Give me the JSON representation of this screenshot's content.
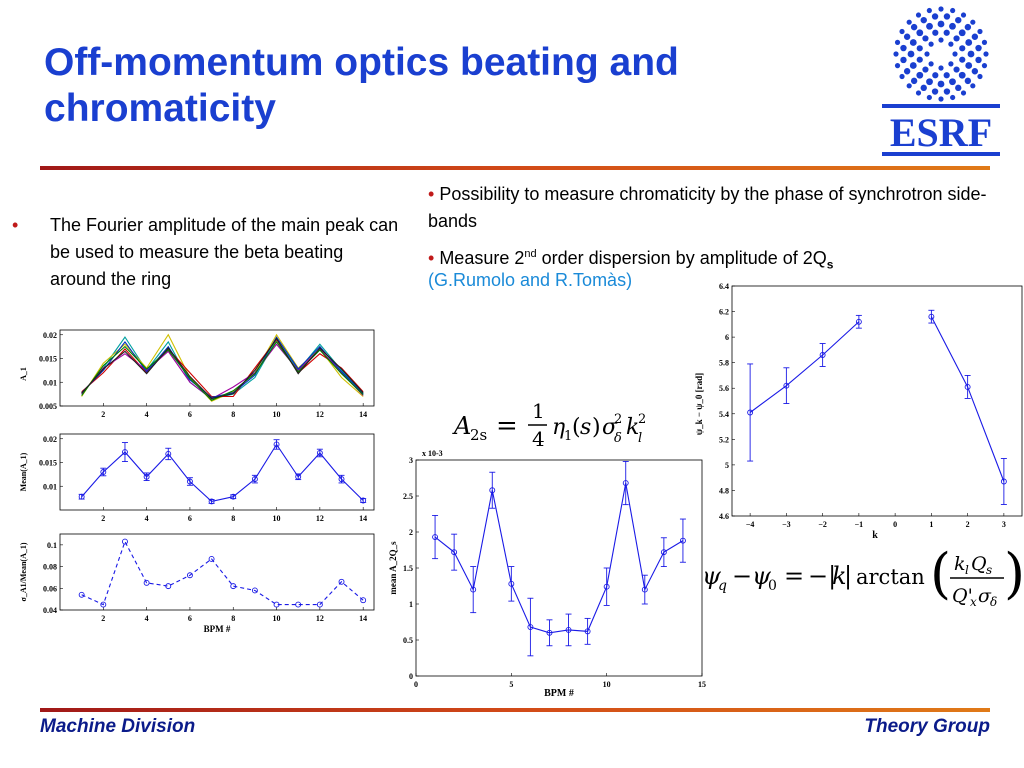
{
  "title": "Off-momentum optics beating and chromaticity",
  "left_bullet": "The Fourier amplitude of the main peak can be used to measure the beta beating around the ring",
  "right_bullet_1": "Possibility to measure chromaticity by the phase of synchrotron side-bands",
  "right_bullet_2": {
    "pre": "Measure 2",
    "sup": "nd",
    "mid": " order dispersion by amplitude of 2Q",
    "sub": "s"
  },
  "reference": "(G.Rumolo and R.Tomàs)",
  "footer_left": "Machine Division",
  "footer_right": "Theory Group",
  "logo_text": "ESRF",
  "colors": {
    "title": "#1a3fd0",
    "accent_red": "#c01a1a",
    "plot_blue": "#1a1ae6",
    "link": "#1a8ad8",
    "footer": "#0b1b8a"
  },
  "chart_data": [
    {
      "type": "line",
      "ylabel": "A_1",
      "x": [
        1,
        2,
        3,
        4,
        5,
        6,
        7,
        8,
        9,
        10,
        11,
        12,
        13,
        14
      ],
      "xlim": [
        0,
        14.5
      ],
      "ylim": [
        0.005,
        0.021
      ],
      "xticks": [
        2,
        4,
        6,
        8,
        10,
        12,
        14
      ],
      "yticks": [
        "0.005",
        "0.01",
        "0.015",
        "0.02"
      ],
      "series": [
        {
          "values": [
            0.0075,
            0.013,
            0.0195,
            0.0125,
            0.0185,
            0.01,
            0.0065,
            0.0075,
            0.011,
            0.019,
            0.0125,
            0.018,
            0.0125,
            0.0075
          ],
          "color": "#00a0a0"
        },
        {
          "values": [
            0.007,
            0.014,
            0.018,
            0.013,
            0.02,
            0.011,
            0.006,
            0.008,
            0.012,
            0.02,
            0.013,
            0.017,
            0.011,
            0.007
          ],
          "color": "#d0c000"
        },
        {
          "values": [
            0.008,
            0.012,
            0.017,
            0.012,
            0.017,
            0.012,
            0.007,
            0.007,
            0.013,
            0.019,
            0.012,
            0.016,
            0.013,
            0.008
          ],
          "color": "#d00000"
        },
        {
          "values": [
            0.0075,
            0.013,
            0.016,
            0.0125,
            0.0165,
            0.01,
            0.0065,
            0.009,
            0.012,
            0.018,
            0.0125,
            0.017,
            0.012,
            0.0072
          ],
          "color": "#a000a0"
        },
        {
          "values": [
            0.0078,
            0.0125,
            0.0185,
            0.0122,
            0.0175,
            0.0105,
            0.0068,
            0.0078,
            0.0115,
            0.0195,
            0.0128,
            0.0175,
            0.0122,
            0.0076
          ],
          "color": "#0030c0"
        },
        {
          "values": [
            0.0072,
            0.0135,
            0.0175,
            0.0128,
            0.0168,
            0.0108,
            0.0062,
            0.0082,
            0.0118,
            0.0185,
            0.0122,
            0.0168,
            0.0118,
            0.0074
          ],
          "color": "#008000"
        },
        {
          "values": [
            0.0077,
            0.0128,
            0.0165,
            0.0118,
            0.0172,
            0.0112,
            0.0066,
            0.0076,
            0.0125,
            0.0192,
            0.0118,
            0.0172,
            0.0128,
            0.0078
          ],
          "color": "#202020"
        }
      ]
    },
    {
      "type": "line",
      "ylabel": "Mean(A_1)",
      "x": [
        1,
        2,
        3,
        4,
        5,
        6,
        7,
        8,
        9,
        10,
        11,
        12,
        13,
        14
      ],
      "xlim": [
        0,
        14.5
      ],
      "ylim": [
        0.005,
        0.021
      ],
      "xticks": [
        2,
        4,
        6,
        8,
        10,
        12,
        14
      ],
      "yticks": [
        "0.01",
        "0.015",
        "0.02"
      ],
      "series": [
        {
          "values": [
            0.0078,
            0.013,
            0.0172,
            0.012,
            0.0168,
            0.011,
            0.0068,
            0.0078,
            0.0115,
            0.0188,
            0.012,
            0.017,
            0.0115,
            0.007
          ],
          "err": [
            0.0005,
            0.0008,
            0.002,
            0.0008,
            0.0012,
            0.0008,
            0.0004,
            0.0004,
            0.0008,
            0.001,
            0.0006,
            0.0008,
            0.0008,
            0.0004
          ]
        }
      ]
    },
    {
      "type": "line",
      "ylabel": "σ_A1/Mean(A_1)",
      "xlabel": "BPM #",
      "x": [
        1,
        2,
        3,
        4,
        5,
        6,
        7,
        8,
        9,
        10,
        11,
        12,
        13,
        14
      ],
      "xlim": [
        0,
        14.5
      ],
      "ylim": [
        0.04,
        0.11
      ],
      "xticks": [
        2,
        4,
        6,
        8,
        10,
        12,
        14
      ],
      "yticks": [
        "0.04",
        "0.06",
        "0.08",
        "0.1"
      ],
      "series": [
        {
          "values": [
            0.054,
            0.045,
            0.103,
            0.065,
            0.062,
            0.072,
            0.087,
            0.062,
            0.058,
            0.045,
            0.045,
            0.045,
            0.066,
            0.049
          ],
          "dashed": true
        }
      ]
    },
    {
      "type": "line",
      "ylabel": "mean A_2Q_s",
      "xlabel": "BPM #",
      "exp_label": "x 10-3",
      "x": [
        1,
        2,
        3,
        4,
        5,
        6,
        7,
        8,
        9,
        10,
        11,
        12,
        13,
        14
      ],
      "xlim": [
        0,
        15
      ],
      "ylim": [
        0,
        3
      ],
      "xticks": [
        "0",
        "5",
        "10",
        "15"
      ],
      "yticks": [
        "0",
        "0.5",
        "1",
        "1.5",
        "2",
        "2.5",
        "3"
      ],
      "series": [
        {
          "values": [
            1.93,
            1.72,
            1.2,
            2.58,
            1.28,
            0.68,
            0.6,
            0.64,
            0.62,
            1.24,
            2.68,
            1.2,
            1.72,
            1.88
          ],
          "err": [
            0.3,
            0.25,
            0.32,
            0.25,
            0.24,
            0.4,
            0.18,
            0.22,
            0.18,
            0.26,
            0.3,
            0.2,
            0.2,
            0.3
          ]
        }
      ]
    },
    {
      "type": "scatter",
      "ylabel": "ψ_k − ψ_0 [rad]",
      "xlabel": "k",
      "segments": [
        {
          "x": [
            -4,
            -3,
            -2,
            -1
          ],
          "y": [
            5.41,
            5.62,
            5.86,
            6.12
          ],
          "err": [
            0.38,
            0.14,
            0.09,
            0.05
          ]
        },
        {
          "x": [
            1,
            2,
            3
          ],
          "y": [
            6.16,
            5.61,
            4.87
          ],
          "err": [
            0.05,
            0.09,
            0.18
          ]
        }
      ],
      "xlim": [
        -4.5,
        3.5
      ],
      "ylim": [
        4.6,
        6.4
      ],
      "xticks": [
        "−4",
        "−3",
        "−2",
        "−1",
        "0",
        "1",
        "2",
        "3"
      ],
      "yticks": [
        "4.6",
        "4.8",
        "5",
        "5.2",
        "5.4",
        "5.6",
        "5.8",
        "6",
        "6.2",
        "6.4"
      ]
    }
  ]
}
